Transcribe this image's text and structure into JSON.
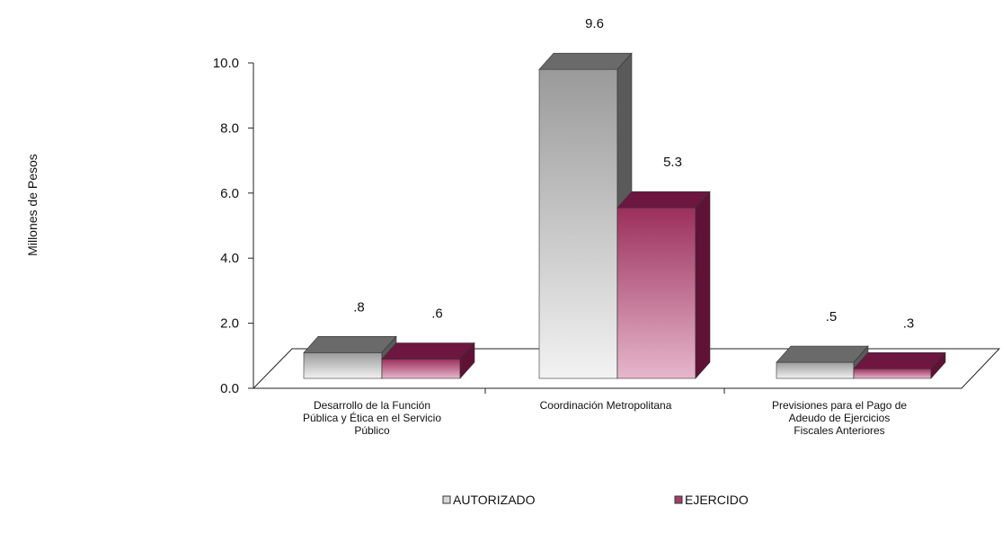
{
  "chart_data": {
    "type": "bar",
    "ylabel": "Millones de Pesos",
    "ylim": [
      0,
      10
    ],
    "yticks": [
      "0.0",
      "2.0",
      "4.0",
      "6.0",
      "8.0",
      "10.0"
    ],
    "categories": [
      "Desarrollo de la Función Pública y Ética en el Servicio Público",
      "Coordinación Metropolitana",
      "Previsiones para el Pago de Adeudo de Ejercicios Fiscales Anteriores"
    ],
    "category_lines": [
      [
        "Desarrollo de la Función",
        "Pública y Ética en el Servicio",
        "Público"
      ],
      [
        "Coordinación Metropolitana"
      ],
      [
        "Previsiones para el Pago de",
        "Adeudo de Ejercicios",
        "Fiscales Anteriores"
      ]
    ],
    "series": [
      {
        "name": "AUTORIZADO",
        "values": [
          0.8,
          9.6,
          0.5
        ],
        "labels": [
          ".8",
          "9.6",
          ".5"
        ],
        "color": "#c8c8c8"
      },
      {
        "name": "EJERCIDO",
        "values": [
          0.6,
          5.3,
          0.3
        ],
        "labels": [
          ".6",
          "5.3",
          ".3"
        ],
        "color": "#a0406a"
      }
    ],
    "legend_position": "bottom",
    "grid": false,
    "style": "3d"
  }
}
